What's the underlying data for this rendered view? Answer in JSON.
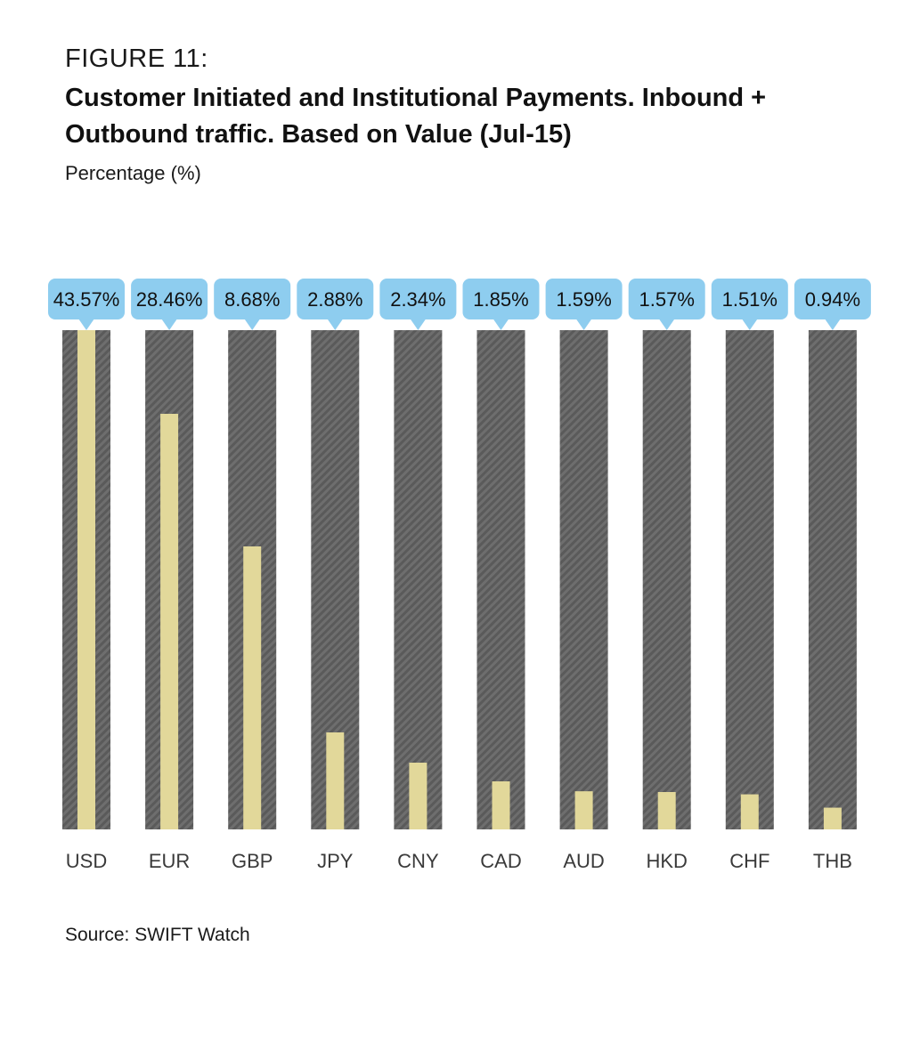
{
  "figure_label": "FIGURE 11:",
  "chart_data": {
    "type": "bar",
    "title": "Customer Initiated and Institutional Payments. Inbound + Outbound traffic. Based on Value (Jul-15)",
    "ylabel": "Percentage (%)",
    "categories": [
      "USD",
      "EUR",
      "GBP",
      "JPY",
      "CNY",
      "CAD",
      "AUD",
      "HKD",
      "CHF",
      "THB"
    ],
    "values": [
      43.57,
      28.46,
      8.68,
      2.88,
      2.34,
      1.85,
      1.59,
      1.57,
      1.51,
      0.94
    ],
    "data_labels": [
      "43.57%",
      "28.46%",
      "8.68%",
      "2.88%",
      "2.34%",
      "1.85%",
      "1.59%",
      "1.57%",
      "1.51%",
      "0.94%"
    ],
    "grid": false,
    "legend": "none"
  },
  "source": "Source: SWIFT Watch",
  "colors": {
    "track": "#5a5a5a",
    "track_stripe": "#6e6e6e",
    "bar": "#e2d89a",
    "callout": "#8ecdef"
  }
}
